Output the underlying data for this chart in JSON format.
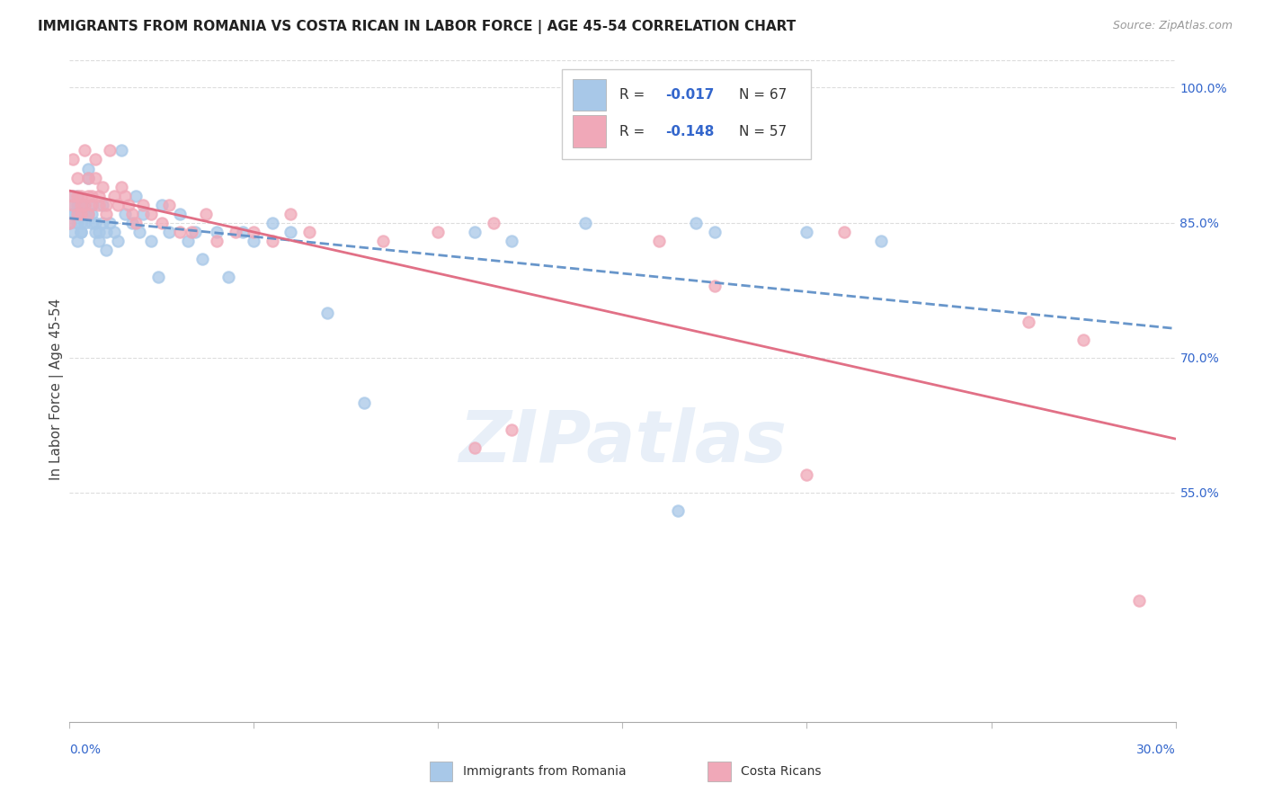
{
  "title": "IMMIGRANTS FROM ROMANIA VS COSTA RICAN IN LABOR FORCE | AGE 45-54 CORRELATION CHART",
  "source": "Source: ZipAtlas.com",
  "ylabel": "In Labor Force | Age 45-54",
  "xmin": 0.0,
  "xmax": 0.3,
  "ymin": 0.295,
  "ymax": 1.035,
  "yticks": [
    0.55,
    0.7,
    0.85,
    1.0
  ],
  "ytick_labels": [
    "55.0%",
    "70.0%",
    "85.0%",
    "100.0%"
  ],
  "legend_r_romania": "-0.017",
  "legend_n_romania": "N = 67",
  "legend_r_costa": "-0.148",
  "legend_n_costa": "N = 57",
  "legend_label_romania": "Immigrants from Romania",
  "legend_label_costa": "Costa Ricans",
  "color_romania": "#a8c8e8",
  "color_costa": "#f0a8b8",
  "color_trend_romania": "#6090c8",
  "color_trend_costa": "#e06880",
  "color_r_value": "#3366cc",
  "background_color": "#ffffff",
  "watermark": "ZIPatlas",
  "romania_x": [
    0.0,
    0.001,
    0.001,
    0.001,
    0.001,
    0.001,
    0.002,
    0.002,
    0.002,
    0.002,
    0.002,
    0.003,
    0.003,
    0.003,
    0.003,
    0.003,
    0.003,
    0.004,
    0.004,
    0.004,
    0.005,
    0.005,
    0.005,
    0.006,
    0.006,
    0.006,
    0.007,
    0.007,
    0.008,
    0.008,
    0.009,
    0.009,
    0.01,
    0.01,
    0.011,
    0.012,
    0.013,
    0.014,
    0.015,
    0.017,
    0.018,
    0.019,
    0.02,
    0.022,
    0.024,
    0.025,
    0.027,
    0.03,
    0.032,
    0.034,
    0.036,
    0.04,
    0.043,
    0.047,
    0.05,
    0.055,
    0.06,
    0.07,
    0.08,
    0.11,
    0.12,
    0.14,
    0.165,
    0.17,
    0.175,
    0.2,
    0.22
  ],
  "romania_y": [
    0.85,
    0.86,
    0.87,
    0.88,
    0.84,
    0.86,
    0.86,
    0.87,
    0.88,
    0.83,
    0.85,
    0.84,
    0.86,
    0.85,
    0.87,
    0.84,
    0.86,
    0.85,
    0.86,
    0.87,
    0.9,
    0.91,
    0.86,
    0.85,
    0.86,
    0.87,
    0.84,
    0.85,
    0.84,
    0.83,
    0.85,
    0.87,
    0.84,
    0.82,
    0.85,
    0.84,
    0.83,
    0.93,
    0.86,
    0.85,
    0.88,
    0.84,
    0.86,
    0.83,
    0.79,
    0.87,
    0.84,
    0.86,
    0.83,
    0.84,
    0.81,
    0.84,
    0.79,
    0.84,
    0.83,
    0.85,
    0.84,
    0.75,
    0.65,
    0.84,
    0.83,
    0.85,
    0.53,
    0.85,
    0.84,
    0.84,
    0.83
  ],
  "costa_x": [
    0.0,
    0.001,
    0.001,
    0.001,
    0.002,
    0.002,
    0.002,
    0.003,
    0.003,
    0.003,
    0.004,
    0.004,
    0.005,
    0.005,
    0.005,
    0.006,
    0.006,
    0.007,
    0.007,
    0.008,
    0.008,
    0.009,
    0.01,
    0.01,
    0.011,
    0.012,
    0.013,
    0.014,
    0.015,
    0.016,
    0.017,
    0.018,
    0.02,
    0.022,
    0.025,
    0.027,
    0.03,
    0.033,
    0.037,
    0.04,
    0.045,
    0.05,
    0.055,
    0.06,
    0.065,
    0.085,
    0.1,
    0.11,
    0.115,
    0.12,
    0.16,
    0.175,
    0.2,
    0.21,
    0.26,
    0.275,
    0.29
  ],
  "costa_y": [
    0.85,
    0.87,
    0.88,
    0.92,
    0.86,
    0.88,
    0.9,
    0.87,
    0.88,
    0.86,
    0.93,
    0.87,
    0.88,
    0.9,
    0.86,
    0.87,
    0.88,
    0.9,
    0.92,
    0.88,
    0.87,
    0.89,
    0.87,
    0.86,
    0.93,
    0.88,
    0.87,
    0.89,
    0.88,
    0.87,
    0.86,
    0.85,
    0.87,
    0.86,
    0.85,
    0.87,
    0.84,
    0.84,
    0.86,
    0.83,
    0.84,
    0.84,
    0.83,
    0.86,
    0.84,
    0.83,
    0.84,
    0.6,
    0.85,
    0.62,
    0.83,
    0.78,
    0.57,
    0.84,
    0.74,
    0.72,
    0.43
  ]
}
